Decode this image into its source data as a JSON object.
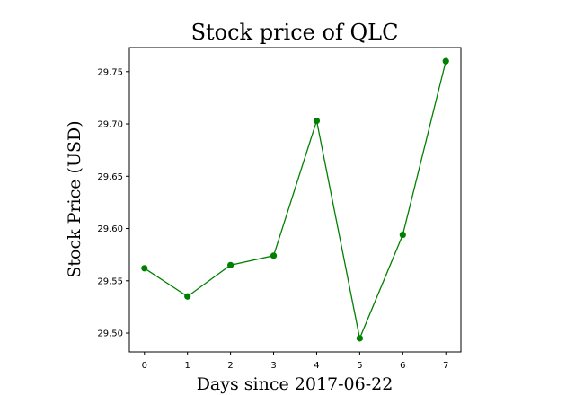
{
  "chart_data": {
    "type": "line",
    "title": "Stock price of QLC",
    "xlabel": "Days since 2017-06-22",
    "ylabel": "Stock Price (USD)",
    "x": [
      0,
      1,
      2,
      3,
      4,
      5,
      6,
      7
    ],
    "series": [
      {
        "name": "QLC",
        "values": [
          29.562,
          29.535,
          29.565,
          29.574,
          29.703,
          29.495,
          29.594,
          29.76
        ],
        "color": "#008000",
        "marker": "circle"
      }
    ],
    "xlim": [
      -0.35,
      7.35
    ],
    "ylim": [
      29.482,
      29.773
    ],
    "xticks": [
      "0",
      "1",
      "2",
      "3",
      "4",
      "5",
      "6",
      "7"
    ],
    "yticks": [
      "29.50",
      "29.55",
      "29.60",
      "29.65",
      "29.70",
      "29.75"
    ],
    "grid": false
  }
}
